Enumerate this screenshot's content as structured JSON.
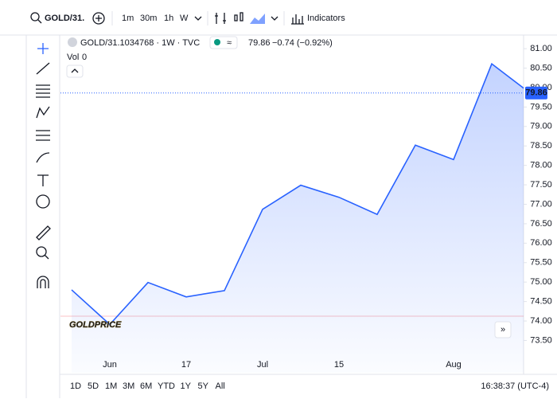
{
  "toolbar": {
    "symbol": "GOLD/31.",
    "intervals": [
      "1m",
      "30m",
      "1h",
      "W"
    ],
    "indicators": "Indicators"
  },
  "legend": {
    "title": "GOLD/31.1034768 · 1W · TVC",
    "last": "79.86",
    "change": "−0.74 (−0.92%)",
    "vol": "Vol",
    "vol_value": "0"
  },
  "watermark": "GOLDPRICE",
  "range_buttons": [
    "1D",
    "5D",
    "1M",
    "3M",
    "6M",
    "YTD",
    "1Y",
    "5Y",
    "All"
  ],
  "clock": "16:38:37 (UTC-4)",
  "chart_data": {
    "type": "area",
    "categories": [
      null,
      "Jun",
      null,
      "17",
      null,
      "Jul",
      null,
      "15",
      null,
      null,
      "Aug",
      null,
      null
    ],
    "values": [
      74.8,
      73.91,
      74.99,
      74.62,
      74.78,
      76.87,
      77.49,
      77.18,
      76.74,
      78.52,
      78.15,
      80.61,
      79.86
    ],
    "color": "#2962ff",
    "last_price": {
      "value": 79.86,
      "label": "79.86"
    },
    "ylim": [
      72.67,
      81.35
    ],
    "yticks": [
      {
        "value": 73.5,
        "label": "73.50"
      },
      {
        "value": 74,
        "label": "74.00"
      },
      {
        "value": 74.5,
        "label": "74.50"
      },
      {
        "value": 75,
        "label": "75.00"
      },
      {
        "value": 75.5,
        "label": "75.50"
      },
      {
        "value": 76,
        "label": "76.00"
      },
      {
        "value": 76.5,
        "label": "76.50"
      },
      {
        "value": 77,
        "label": "77.00"
      },
      {
        "value": 77.5,
        "label": "77.50"
      },
      {
        "value": 78,
        "label": "78.00"
      },
      {
        "value": 78.5,
        "label": "78.50"
      },
      {
        "value": 79,
        "label": "79.00"
      },
      {
        "value": 79.5,
        "label": "79.50"
      },
      {
        "value": 80,
        "label": "80.00"
      },
      {
        "value": 80.5,
        "label": "80.50"
      },
      {
        "value": 81,
        "label": "81.00"
      }
    ],
    "grid": false
  }
}
